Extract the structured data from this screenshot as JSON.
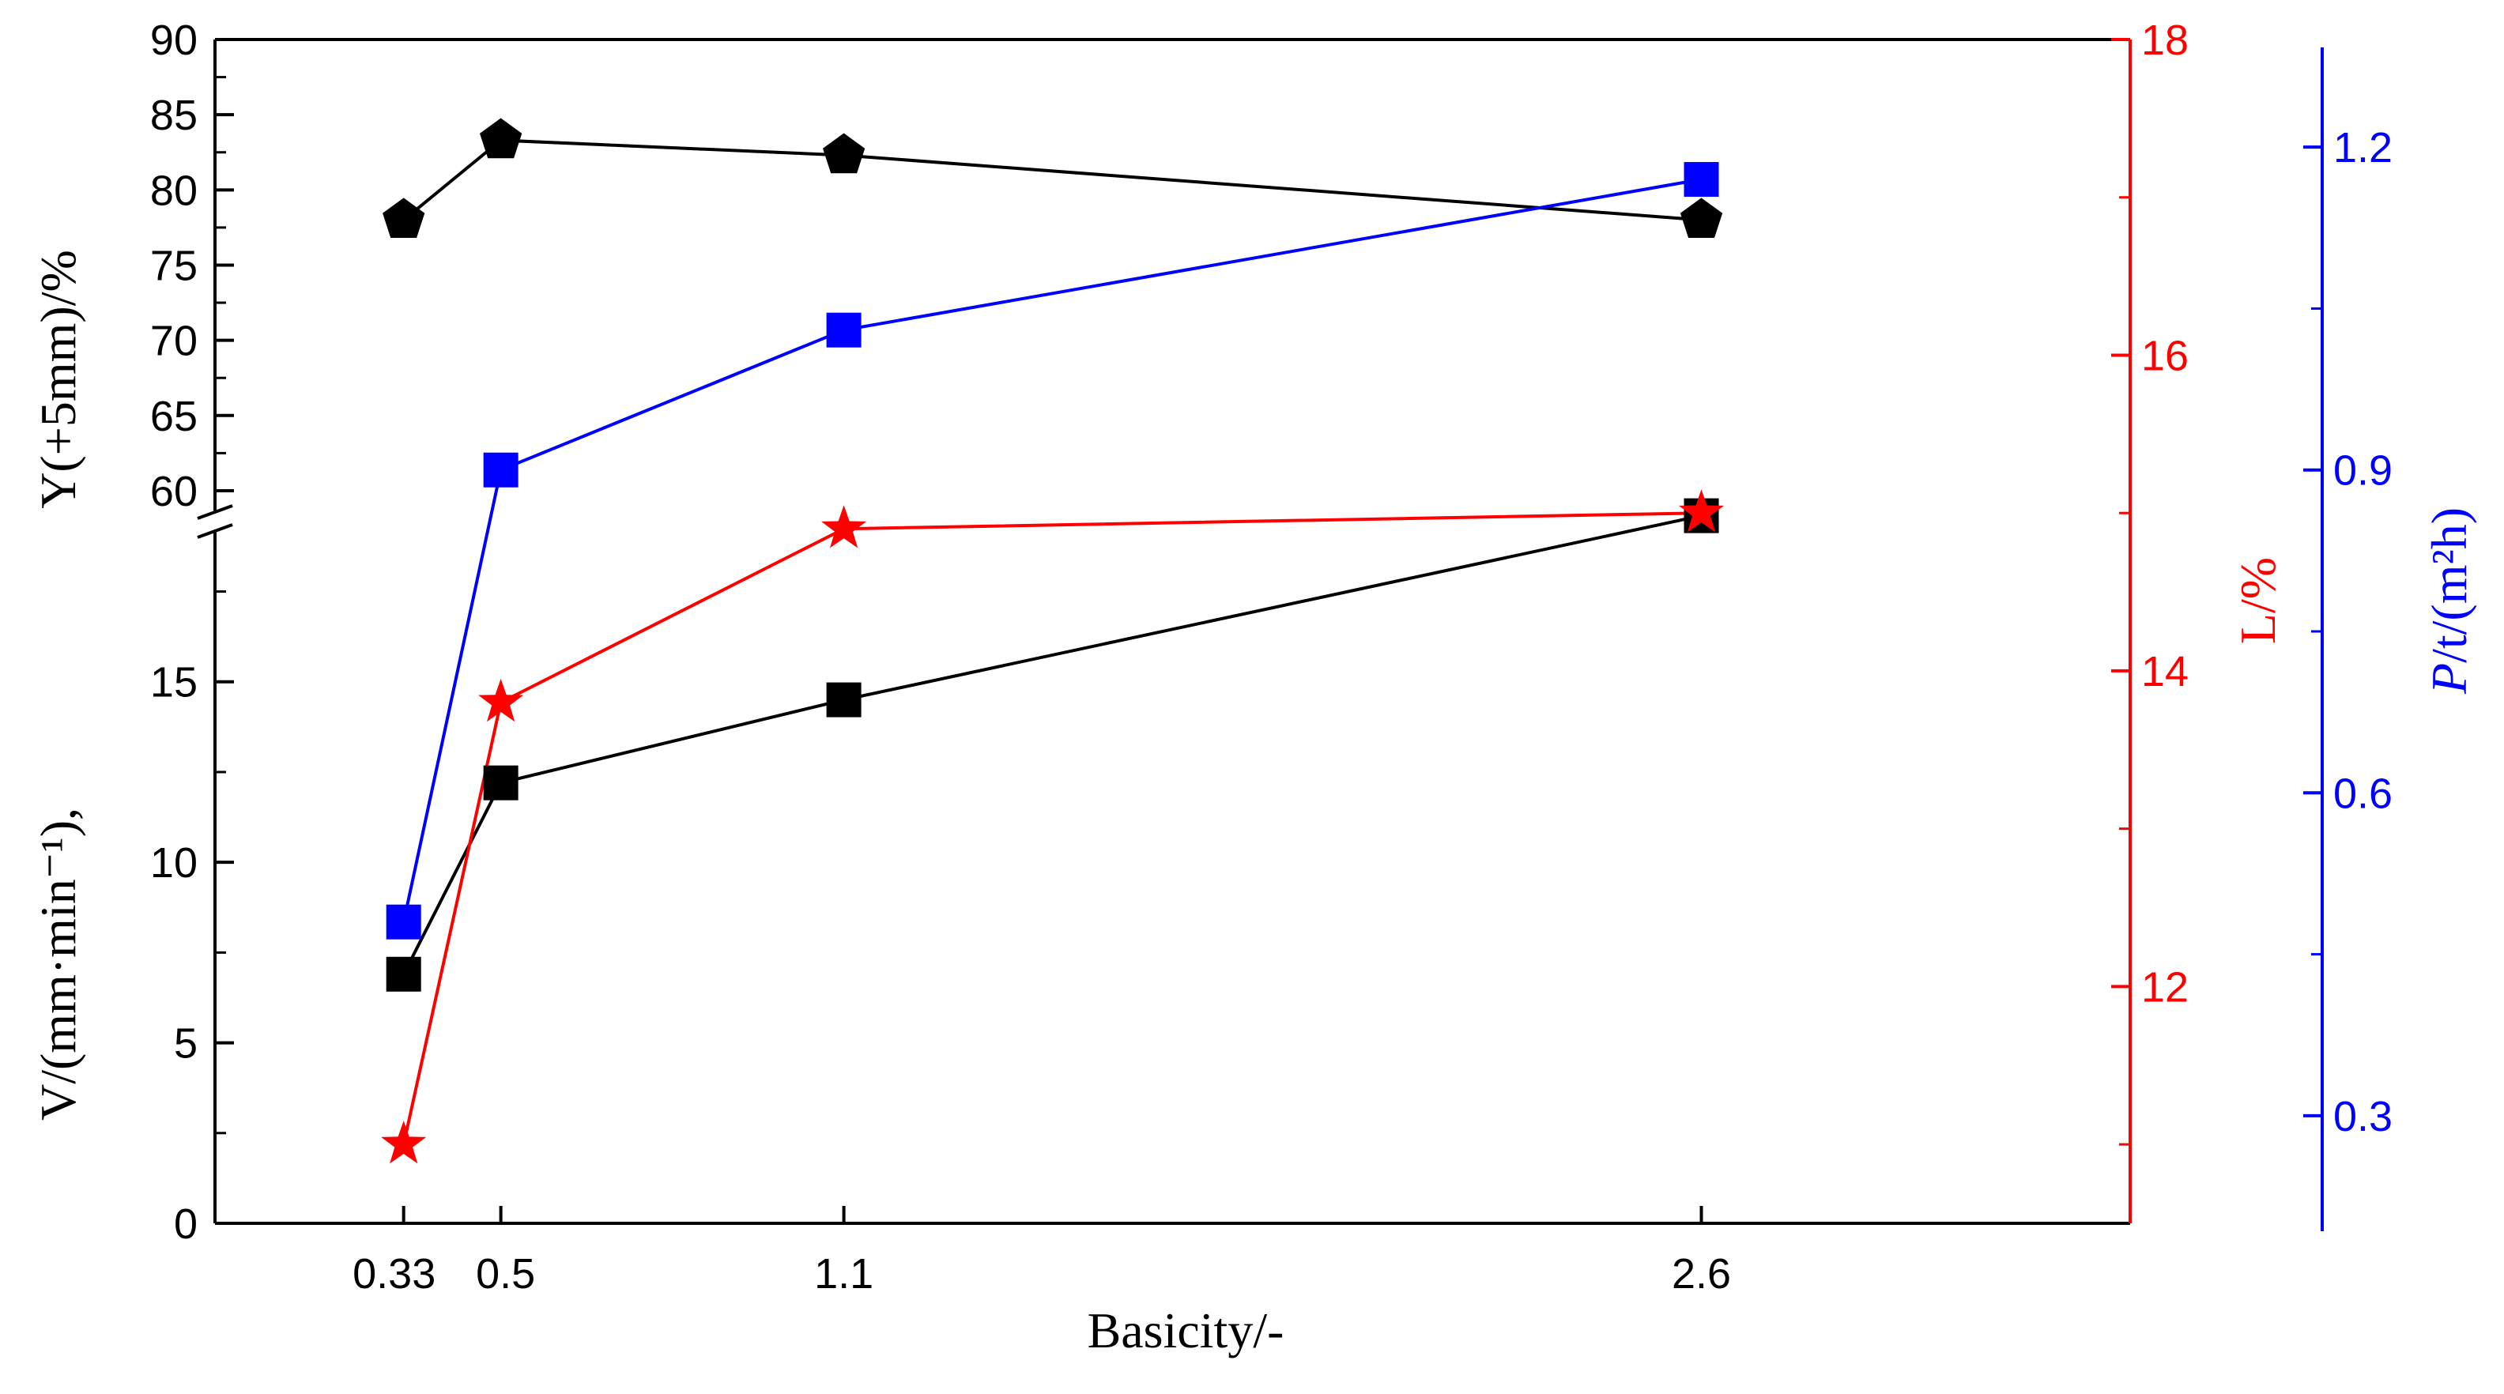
{
  "chart_data": {
    "type": "line",
    "xlabel": "Basicity/-",
    "x_ticks": [
      "0.33",
      "0.5",
      "1.1",
      "2.6"
    ],
    "x": [
      0.33,
      0.5,
      1.1,
      2.6
    ],
    "colors": {
      "black": "#000000",
      "red": "#ff0000",
      "blue": "#0000ff"
    },
    "axes": {
      "left_upper": {
        "label": "Y(+5mm)/%",
        "ylim": [
          59,
          90
        ],
        "ticks": [
          "60",
          "65",
          "70",
          "75",
          "80",
          "85",
          "90"
        ]
      },
      "left_lower": {
        "label": "V/(mm·min⁻¹),",
        "ylim": [
          0,
          19
        ],
        "ticks": [
          "0",
          "5",
          "10",
          "15"
        ]
      },
      "right_red": {
        "label": "L/%",
        "ylim": [
          10.5,
          18
        ],
        "ticks": [
          "12",
          "14",
          "16",
          "18"
        ]
      },
      "right_blue": {
        "label_italic": "P",
        "label_rest": "/t/(m²h)",
        "ylim": [
          0.2,
          1.3
        ],
        "ticks": [
          "0.3",
          "0.6",
          "0.9",
          "1.2"
        ]
      }
    },
    "series": [
      {
        "name": "Y(+5mm)",
        "axis": "left_upper",
        "color": "#000000",
        "marker": "pentagon",
        "values": [
          78.0,
          83.3,
          82.3,
          78.0
        ]
      },
      {
        "name": "V",
        "axis": "left_lower",
        "color": "#000000",
        "marker": "square",
        "values": [
          6.9,
          12.2,
          14.5,
          19.6
        ]
      },
      {
        "name": "L",
        "axis": "right_red",
        "color": "#ff0000",
        "marker": "star",
        "values": [
          11.0,
          13.8,
          14.9,
          15.0
        ]
      },
      {
        "name": "P",
        "axis": "right_blue",
        "color": "#0000ff",
        "marker": "square",
        "values": [
          0.48,
          0.9,
          1.03,
          1.17
        ]
      }
    ]
  }
}
